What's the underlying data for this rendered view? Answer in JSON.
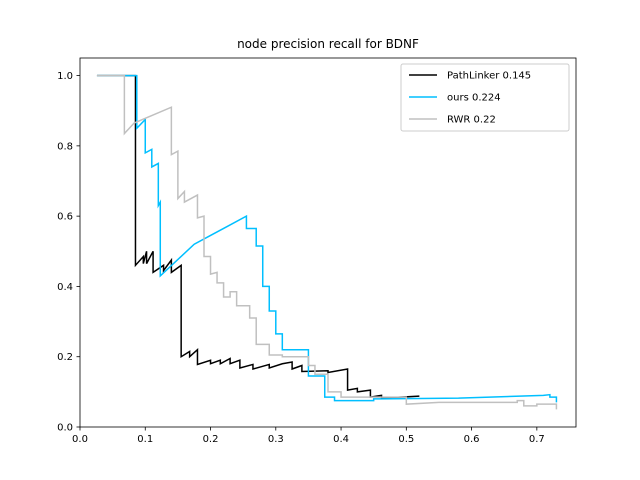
{
  "chart_data": {
    "type": "line",
    "title": "node precision recall for BDNF",
    "xlabel": "",
    "ylabel": "",
    "xlim": [
      0.0,
      0.76
    ],
    "ylim": [
      0.0,
      1.05
    ],
    "xticks": [
      "0.0",
      "0.1",
      "0.2",
      "0.3",
      "0.4",
      "0.5",
      "0.6",
      "0.7"
    ],
    "yticks": [
      "0.0",
      "0.2",
      "0.4",
      "0.6",
      "0.8",
      "1.0"
    ],
    "grid": false,
    "legend_position": "top-right",
    "series": [
      {
        "name": "PathLinker 0.145",
        "color": "#000000",
        "points": [
          [
            0.026,
            1.0
          ],
          [
            0.085,
            1.0
          ],
          [
            0.085,
            0.46
          ],
          [
            0.097,
            0.485
          ],
          [
            0.097,
            0.465
          ],
          [
            0.102,
            0.5
          ],
          [
            0.102,
            0.465
          ],
          [
            0.112,
            0.5
          ],
          [
            0.112,
            0.44
          ],
          [
            0.128,
            0.46
          ],
          [
            0.128,
            0.445
          ],
          [
            0.14,
            0.475
          ],
          [
            0.14,
            0.44
          ],
          [
            0.155,
            0.46
          ],
          [
            0.155,
            0.2
          ],
          [
            0.168,
            0.215
          ],
          [
            0.168,
            0.2
          ],
          [
            0.18,
            0.22
          ],
          [
            0.18,
            0.178
          ],
          [
            0.2,
            0.19
          ],
          [
            0.2,
            0.18
          ],
          [
            0.215,
            0.19
          ],
          [
            0.215,
            0.18
          ],
          [
            0.23,
            0.195
          ],
          [
            0.23,
            0.18
          ],
          [
            0.245,
            0.19
          ],
          [
            0.245,
            0.168
          ],
          [
            0.265,
            0.178
          ],
          [
            0.265,
            0.165
          ],
          [
            0.29,
            0.178
          ],
          [
            0.29,
            0.168
          ],
          [
            0.31,
            0.18
          ],
          [
            0.31,
            0.18
          ],
          [
            0.325,
            0.185
          ],
          [
            0.325,
            0.165
          ],
          [
            0.34,
            0.175
          ],
          [
            0.34,
            0.158
          ],
          [
            0.38,
            0.16
          ],
          [
            0.38,
            0.155
          ],
          [
            0.41,
            0.165
          ],
          [
            0.41,
            0.105
          ],
          [
            0.425,
            0.11
          ],
          [
            0.425,
            0.1
          ],
          [
            0.445,
            0.105
          ],
          [
            0.445,
            0.085
          ],
          [
            0.462,
            0.09
          ],
          [
            0.462,
            0.082
          ],
          [
            0.52,
            0.088
          ]
        ]
      },
      {
        "name": "ours 0.224",
        "color": "#00bfff",
        "points": [
          [
            0.026,
            1.0
          ],
          [
            0.087,
            1.0
          ],
          [
            0.087,
            0.85
          ],
          [
            0.1,
            0.875
          ],
          [
            0.1,
            0.78
          ],
          [
            0.11,
            0.79
          ],
          [
            0.11,
            0.74
          ],
          [
            0.12,
            0.75
          ],
          [
            0.12,
            0.63
          ],
          [
            0.123,
            0.64
          ],
          [
            0.123,
            0.43
          ],
          [
            0.175,
            0.52
          ],
          [
            0.2,
            0.545
          ],
          [
            0.225,
            0.57
          ],
          [
            0.255,
            0.6
          ],
          [
            0.255,
            0.565
          ],
          [
            0.27,
            0.565
          ],
          [
            0.27,
            0.515
          ],
          [
            0.28,
            0.515
          ],
          [
            0.28,
            0.4
          ],
          [
            0.29,
            0.4
          ],
          [
            0.29,
            0.33
          ],
          [
            0.3,
            0.33
          ],
          [
            0.3,
            0.265
          ],
          [
            0.31,
            0.265
          ],
          [
            0.31,
            0.22
          ],
          [
            0.35,
            0.22
          ],
          [
            0.35,
            0.145
          ],
          [
            0.375,
            0.145
          ],
          [
            0.375,
            0.085
          ],
          [
            0.39,
            0.085
          ],
          [
            0.39,
            0.075
          ],
          [
            0.45,
            0.075
          ],
          [
            0.45,
            0.08
          ],
          [
            0.58,
            0.082
          ],
          [
            0.71,
            0.09
          ],
          [
            0.72,
            0.092
          ],
          [
            0.72,
            0.085
          ],
          [
            0.73,
            0.085
          ],
          [
            0.73,
            0.07
          ]
        ]
      },
      {
        "name": "RWR 0.22",
        "color": "#c0c0c0",
        "points": [
          [
            0.026,
            1.0
          ],
          [
            0.068,
            1.0
          ],
          [
            0.068,
            0.835
          ],
          [
            0.083,
            0.865
          ],
          [
            0.14,
            0.91
          ],
          [
            0.14,
            0.775
          ],
          [
            0.15,
            0.785
          ],
          [
            0.15,
            0.65
          ],
          [
            0.16,
            0.67
          ],
          [
            0.16,
            0.64
          ],
          [
            0.18,
            0.66
          ],
          [
            0.18,
            0.595
          ],
          [
            0.19,
            0.6
          ],
          [
            0.19,
            0.485
          ],
          [
            0.2,
            0.485
          ],
          [
            0.2,
            0.435
          ],
          [
            0.21,
            0.44
          ],
          [
            0.21,
            0.41
          ],
          [
            0.22,
            0.41
          ],
          [
            0.22,
            0.37
          ],
          [
            0.23,
            0.37
          ],
          [
            0.23,
            0.385
          ],
          [
            0.24,
            0.385
          ],
          [
            0.24,
            0.345
          ],
          [
            0.26,
            0.345
          ],
          [
            0.26,
            0.31
          ],
          [
            0.27,
            0.31
          ],
          [
            0.27,
            0.235
          ],
          [
            0.29,
            0.235
          ],
          [
            0.29,
            0.205
          ],
          [
            0.31,
            0.205
          ],
          [
            0.31,
            0.2
          ],
          [
            0.32,
            0.2
          ],
          [
            0.32,
            0.2
          ],
          [
            0.35,
            0.2
          ],
          [
            0.35,
            0.175
          ],
          [
            0.36,
            0.175
          ],
          [
            0.36,
            0.15
          ],
          [
            0.38,
            0.15
          ],
          [
            0.38,
            0.1
          ],
          [
            0.4,
            0.1
          ],
          [
            0.4,
            0.085
          ],
          [
            0.5,
            0.085
          ],
          [
            0.5,
            0.065
          ],
          [
            0.55,
            0.07
          ],
          [
            0.67,
            0.07
          ],
          [
            0.67,
            0.075
          ],
          [
            0.68,
            0.075
          ],
          [
            0.68,
            0.06
          ],
          [
            0.7,
            0.06
          ],
          [
            0.7,
            0.065
          ],
          [
            0.73,
            0.065
          ],
          [
            0.73,
            0.05
          ]
        ]
      }
    ]
  }
}
